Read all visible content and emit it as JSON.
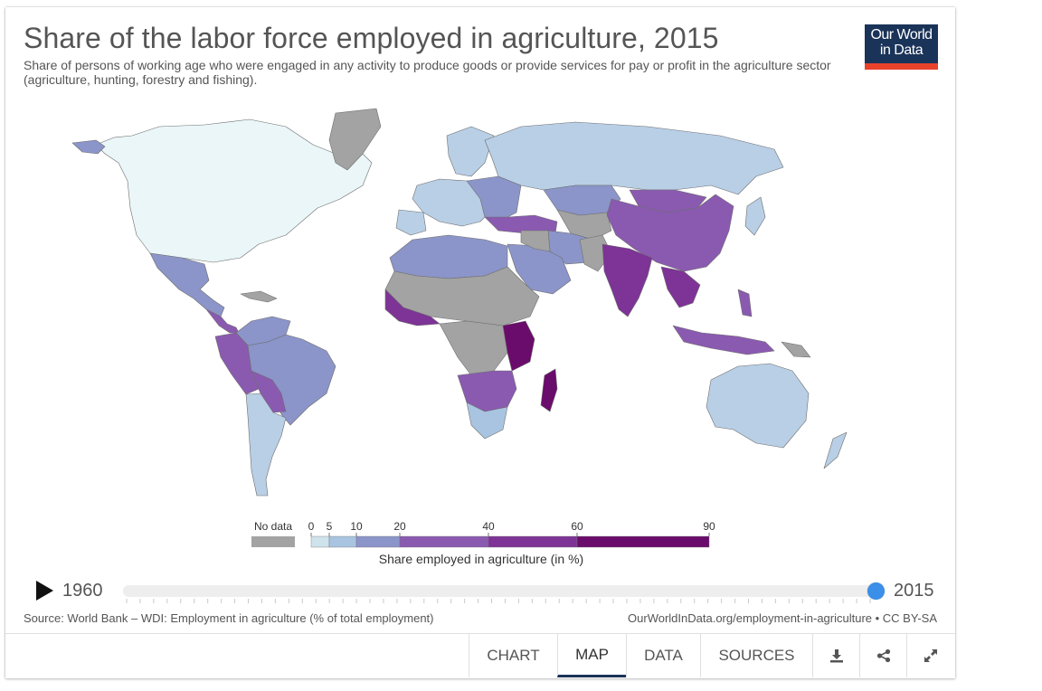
{
  "header": {
    "title": "Share of the labor force employed in agriculture, 2015",
    "subtitle": "Share of persons of working age who were engaged in any activity to produce goods or provide services for pay or profit in the agriculture sector (agriculture, hunting, forestry and fishing)."
  },
  "logo": {
    "line1": "Our World",
    "line2": "in Data"
  },
  "legend": {
    "no_data_label": "No data",
    "no_data_color": "#a3a3a3",
    "title": "Share employed in agriculture (in %)",
    "bins": [
      {
        "from": 0,
        "to": 5,
        "color": "#cfe3ec",
        "from_label": "0"
      },
      {
        "from": 5,
        "to": 10,
        "color": "#a9c4e0",
        "from_label": "5"
      },
      {
        "from": 10,
        "to": 20,
        "color": "#8b95c9",
        "from_label": "10"
      },
      {
        "from": 20,
        "to": 40,
        "color": "#8a5ab0",
        "from_label": "20"
      },
      {
        "from": 40,
        "to": 60,
        "color": "#7e3396",
        "from_label": "40"
      },
      {
        "from": 60,
        "to": 90,
        "color": "#6a0c6b",
        "from_label": "60",
        "to_label": "90"
      }
    ]
  },
  "timeline": {
    "start_year": "1960",
    "end_year": "2015",
    "selected_year": 2015
  },
  "footer": {
    "source": "Source: World Bank – WDI: Employment in agriculture (% of total employment)",
    "url": "OurWorldInData.org/employment-in-agriculture • CC BY-SA"
  },
  "tabs": [
    {
      "label": "CHART",
      "active": false
    },
    {
      "label": "MAP",
      "active": true
    },
    {
      "label": "DATA",
      "active": false
    },
    {
      "label": "SOURCES",
      "active": false
    }
  ],
  "icons": {
    "download": "download-icon",
    "share": "share-icon",
    "expand": "expand-icon"
  },
  "map_colors": {
    "ocean": "#ffffff",
    "very_low": "#eaf6f8",
    "low": "#b8cfe6",
    "mid": "#8b95c9",
    "high": "#8a5ab0",
    "higher": "#7e3396",
    "highest": "#6a0c6b",
    "no_data": "#a3a3a3"
  }
}
